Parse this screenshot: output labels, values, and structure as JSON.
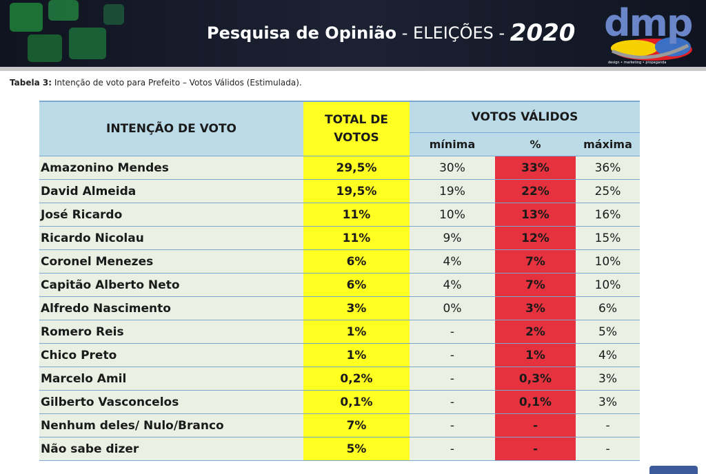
{
  "header": {
    "title_bold": "Pesquisa de Opinião",
    "title_rest": " - ELEIÇÕES - ",
    "title_year": "2020",
    "logo_text": "dmp",
    "logo_tagline": "design • marketing • propaganda"
  },
  "caption": {
    "label": "Tabela 3:",
    "text": " Intenção de voto para Prefeito – Votos Válidos (Estimulada)."
  },
  "table": {
    "headers": {
      "intention": "INTENÇÃO DE VOTO",
      "total": "TOTAL DE VOTOS",
      "valid": "VOTOS VÁLIDOS",
      "min": "mínima",
      "pct": "%",
      "max": "máxima"
    },
    "rows": [
      {
        "name": "Amazonino Mendes",
        "total": "29,5%",
        "min": "30%",
        "pct": "33%",
        "max": "36%"
      },
      {
        "name": "David Almeida",
        "total": "19,5%",
        "min": "19%",
        "pct": "22%",
        "max": "25%"
      },
      {
        "name": "José Ricardo",
        "total": "11%",
        "min": "10%",
        "pct": "13%",
        "max": "16%"
      },
      {
        "name": "Ricardo Nicolau",
        "total": "11%",
        "min": "9%",
        "pct": "12%",
        "max": "15%"
      },
      {
        "name": "Coronel Menezes",
        "total": "6%",
        "min": "4%",
        "pct": "7%",
        "max": "10%"
      },
      {
        "name": "Capitão Alberto Neto",
        "total": "6%",
        "min": "4%",
        "pct": "7%",
        "max": "10%"
      },
      {
        "name": "Alfredo Nascimento",
        "total": "3%",
        "min": "0%",
        "pct": "3%",
        "max": "6%"
      },
      {
        "name": "Romero Reis",
        "total": "1%",
        "min": "-",
        "pct": "2%",
        "max": "5%"
      },
      {
        "name": "Chico Preto",
        "total": "1%",
        "min": "-",
        "pct": "1%",
        "max": "4%"
      },
      {
        "name": "Marcelo Amil",
        "total": "0,2%",
        "min": "-",
        "pct": "0,3%",
        "max": "3%"
      },
      {
        "name": "Gilberto Vasconcelos",
        "total": "0,1%",
        "min": "-",
        "pct": "0,1%",
        "max": "3%"
      },
      {
        "name": "Nenhum deles/ Nulo/Branco",
        "total": "7%",
        "min": "-",
        "pct": "-",
        "max": "-"
      },
      {
        "name": "Não sabe dizer",
        "total": "5%",
        "min": "-",
        "pct": "-",
        "max": "-"
      }
    ],
    "colors": {
      "header_bg": "#bcdbe8",
      "total_bg": "#ffff22",
      "pct_bg": "#e6323e",
      "row_bg": "#eaf0e4"
    }
  },
  "chart_data": {
    "type": "table",
    "title": "Intenção de voto para Prefeito – Votos Válidos (Estimulada).",
    "columns": [
      "INTENÇÃO DE VOTO",
      "TOTAL DE VOTOS",
      "mínima",
      "%",
      "máxima"
    ],
    "categories": [
      "Amazonino Mendes",
      "David Almeida",
      "José Ricardo",
      "Ricardo Nicolau",
      "Coronel Menezes",
      "Capitão Alberto Neto",
      "Alfredo Nascimento",
      "Romero Reis",
      "Chico Preto",
      "Marcelo Amil",
      "Gilberto Vasconcelos",
      "Nenhum deles/ Nulo/Branco",
      "Não sabe dizer"
    ],
    "series": [
      {
        "name": "TOTAL DE VOTOS",
        "values": [
          29.5,
          19.5,
          11,
          11,
          6,
          6,
          3,
          1,
          1,
          0.2,
          0.1,
          7,
          5
        ]
      },
      {
        "name": "mínima",
        "values": [
          30,
          19,
          10,
          9,
          4,
          4,
          0,
          null,
          null,
          null,
          null,
          null,
          null
        ]
      },
      {
        "name": "%",
        "values": [
          33,
          22,
          13,
          12,
          7,
          7,
          3,
          2,
          1,
          0.3,
          0.1,
          null,
          null
        ]
      },
      {
        "name": "máxima",
        "values": [
          36,
          25,
          16,
          15,
          10,
          10,
          6,
          5,
          4,
          3,
          3,
          null,
          null
        ]
      }
    ]
  }
}
